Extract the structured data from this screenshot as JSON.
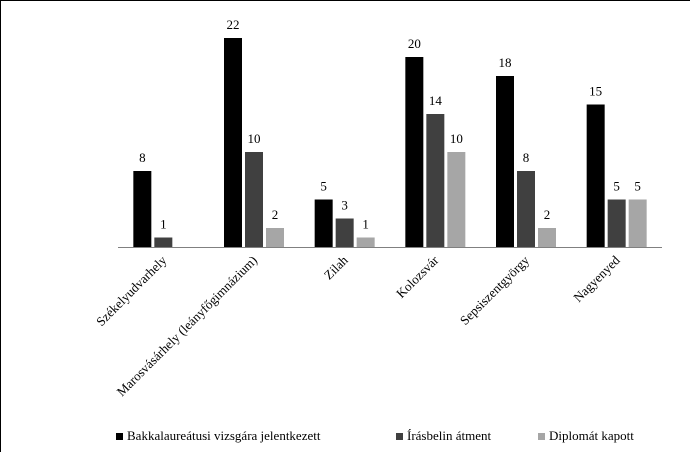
{
  "chart_data": {
    "type": "bar",
    "categories": [
      "Székelyudvarhely",
      "Marosvásárhely (leányfőgimnázium)",
      "Zilah",
      "Kolozsvár",
      "Sepsiszentgyörgy",
      "Nagyenyed"
    ],
    "series": [
      {
        "name": "Bakkalaureátusi vizsgára jelentkezett",
        "color": "#000000",
        "values": [
          8,
          22,
          5,
          20,
          18,
          15
        ]
      },
      {
        "name": "Írásbelin átment",
        "color": "#404040",
        "values": [
          1,
          10,
          3,
          14,
          8,
          5
        ]
      },
      {
        "name": "Diplomát kapott",
        "color": "#a6a6a6",
        "values": [
          0,
          2,
          1,
          10,
          2,
          5
        ]
      }
    ],
    "show_labels": [
      [
        true,
        true,
        true,
        true,
        true,
        true
      ],
      [
        true,
        true,
        true,
        true,
        true,
        true
      ],
      [
        false,
        true,
        true,
        true,
        true,
        true
      ]
    ],
    "ylim": [
      0,
      22
    ],
    "grid": false,
    "legend_position": "bottom"
  }
}
